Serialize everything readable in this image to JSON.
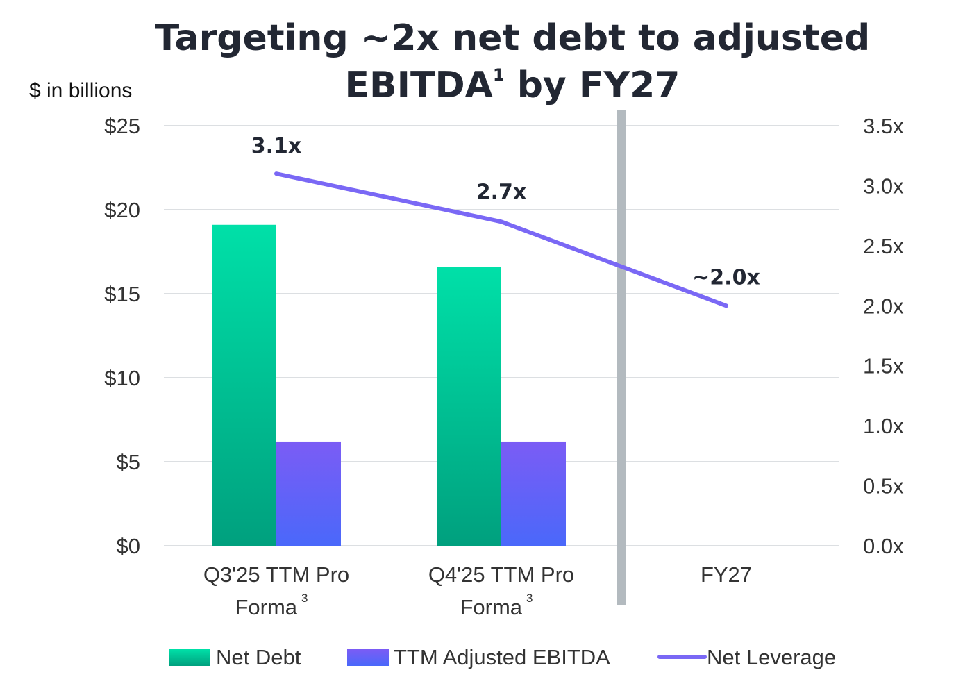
{
  "chart_data": {
    "type": "bar",
    "title": "Targeting ~2x net debt to adjusted EBITDA",
    "title_line1": "Targeting ~2x net debt to adjusted",
    "title_line2": "EBITDA",
    "title_superscript": "1",
    "title_line2_suffix": " by FY27",
    "ylabel": "$ in billions",
    "categories": [
      {
        "line1": "Q3'25 TTM Pro",
        "line2": "Forma",
        "superscript": "3"
      },
      {
        "line1": "Q4'25 TTM Pro",
        "line2": "Forma",
        "superscript": "3"
      },
      {
        "line1": "FY27",
        "line2": "",
        "superscript": ""
      }
    ],
    "ylim": [
      0,
      25
    ],
    "yticks": [
      0,
      5,
      10,
      15,
      20,
      25
    ],
    "ytick_labels": [
      "$0",
      "$5",
      "$10",
      "$15",
      "$20",
      "$25"
    ],
    "y2lim": [
      0,
      3.5
    ],
    "y2ticks": [
      0,
      0.5,
      1.0,
      1.5,
      2.0,
      2.5,
      3.0,
      3.5
    ],
    "y2tick_labels": [
      "0.0x",
      "0.5x",
      "1.0x",
      "1.5x",
      "2.0x",
      "2.5x",
      "3.0x",
      "3.5x"
    ],
    "grid": true,
    "legend_position": "bottom",
    "series": [
      {
        "name": "Net Debt",
        "type": "bar",
        "axis": "left",
        "values": [
          19.1,
          16.6,
          null
        ],
        "color_top": "#00E0A8",
        "color_bottom": "#00A07E"
      },
      {
        "name": "TTM Adjusted EBITDA",
        "type": "bar",
        "axis": "left",
        "values": [
          6.2,
          6.2,
          null
        ],
        "color_top": "#7B5CF5",
        "color_bottom": "#4A68FA"
      },
      {
        "name": "Net Leverage",
        "type": "line",
        "axis": "right",
        "values": [
          3.1,
          2.7,
          2.0
        ],
        "labels": [
          "3.1x",
          "2.7x",
          "~2.0x"
        ],
        "color": "#7A68F5"
      }
    ],
    "divider_color": "#B3BABF"
  }
}
